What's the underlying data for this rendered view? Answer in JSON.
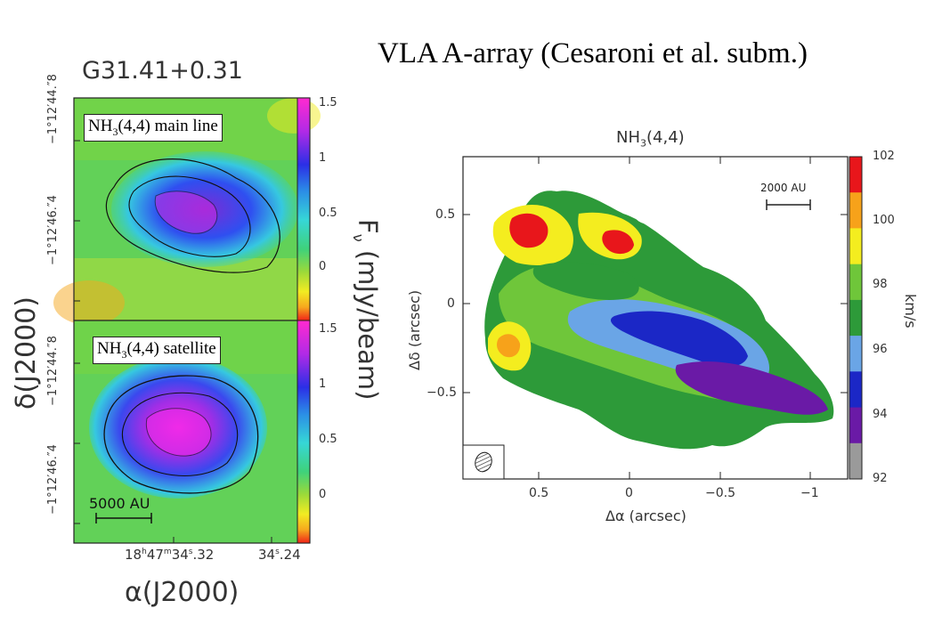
{
  "header": {
    "title": "VLA A-array (Cesaroni et al. subm.)"
  },
  "left_figure": {
    "source_name": "G31.41+0.31",
    "panels": [
      {
        "label_main": "NH",
        "label_sub": "3",
        "label_rest": "(4,4) main line",
        "y_ticks": [
          "−1°12′44.″8",
          "−1°12′46.″4"
        ]
      },
      {
        "label_main": "NH",
        "label_sub": "3",
        "label_rest": "(4,4) satellite",
        "y_ticks": [
          "−1°12′44.″8",
          "−1°12′46.″4"
        ],
        "scalebar_label": "5000 AU"
      }
    ],
    "x_ticks": [
      "18h47m34.s32",
      "34.s24"
    ],
    "x_tick_ra": {
      "h": "18",
      "hs": "h",
      "m": "47",
      "ms": "m",
      "s": "34",
      "ss": "s",
      "frac": ".32"
    },
    "x_tick_ra2": {
      "s": "34",
      "ss": "s",
      "frac": ".24"
    },
    "xlabel": "α(J2000)",
    "ylabel": "δ(J2000)",
    "colorbar": {
      "label": "F",
      "label_sub": "ν",
      "label_rest": " (mJy/beam)",
      "ticks": [
        "1.5",
        "1",
        "0.5",
        "0"
      ]
    }
  },
  "right_figure": {
    "title_main": "NH",
    "title_sub": "3",
    "title_rest": "(4,4)",
    "xlabel": "Δα (arcsec)",
    "ylabel": "Δδ (arcsec)",
    "x_ticks": [
      "0.5",
      "0",
      "−0.5",
      "−1"
    ],
    "y_ticks": [
      "0.5",
      "0",
      "−0.5"
    ],
    "scalebar_label": "2000 AU",
    "colorbar": {
      "label": "km/s",
      "ticks": [
        "102",
        "100",
        "98",
        "96",
        "94",
        "92"
      ],
      "colors": [
        "#e8161b",
        "#f7a21a",
        "#f4ed1f",
        "#6fc63a",
        "#2d9a39",
        "#6aa5e6",
        "#1b27c6",
        "#6a1aa6",
        "#9a9a9a"
      ]
    }
  },
  "colors": {
    "intensity_scale": [
      "#f02418",
      "#f6a81e",
      "#f2ec22",
      "#7ed23d",
      "#3fd27a",
      "#36d7d6",
      "#2b54ee",
      "#7c2ce0",
      "#e628e6"
    ]
  }
}
